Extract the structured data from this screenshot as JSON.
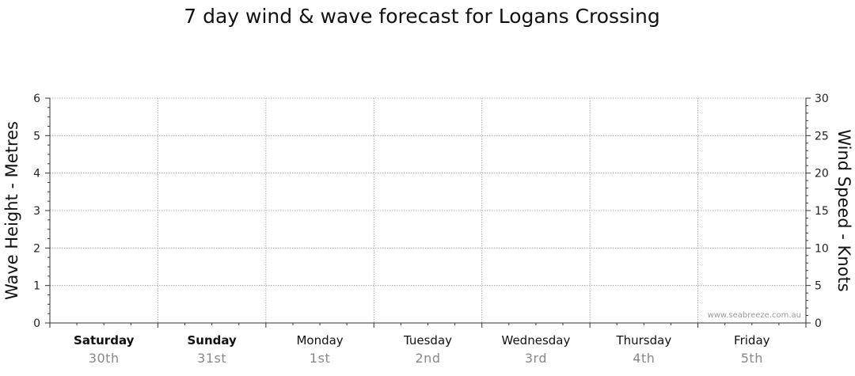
{
  "chart_data": {
    "type": "line",
    "title": "7 day wind & wave forecast for Logans Crossing",
    "ylabel_left": "Wave Height - Metres",
    "ylabel_right": "Wind Speed - Knots",
    "y_left": {
      "range": [
        0,
        6
      ],
      "ticks": [
        "0",
        "1",
        "2",
        "3",
        "4",
        "5",
        "6"
      ]
    },
    "y_right": {
      "range": [
        0,
        30
      ],
      "ticks": [
        "0",
        "5",
        "10",
        "15",
        "20",
        "25",
        "30"
      ]
    },
    "days": [
      {
        "name": "Saturday",
        "date": "30th",
        "bold": true
      },
      {
        "name": "Sunday",
        "date": "31st",
        "bold": true
      },
      {
        "name": "Monday",
        "date": "1st",
        "bold": false
      },
      {
        "name": "Tuesday",
        "date": "2nd",
        "bold": false
      },
      {
        "name": "Wednesday",
        "date": "3rd",
        "bold": false
      },
      {
        "name": "Thursday",
        "date": "4th",
        "bold": false
      },
      {
        "name": "Friday",
        "date": "5th",
        "bold": false
      }
    ],
    "series": [],
    "grid": true,
    "watermark": "www.seabreeze.com.au"
  }
}
